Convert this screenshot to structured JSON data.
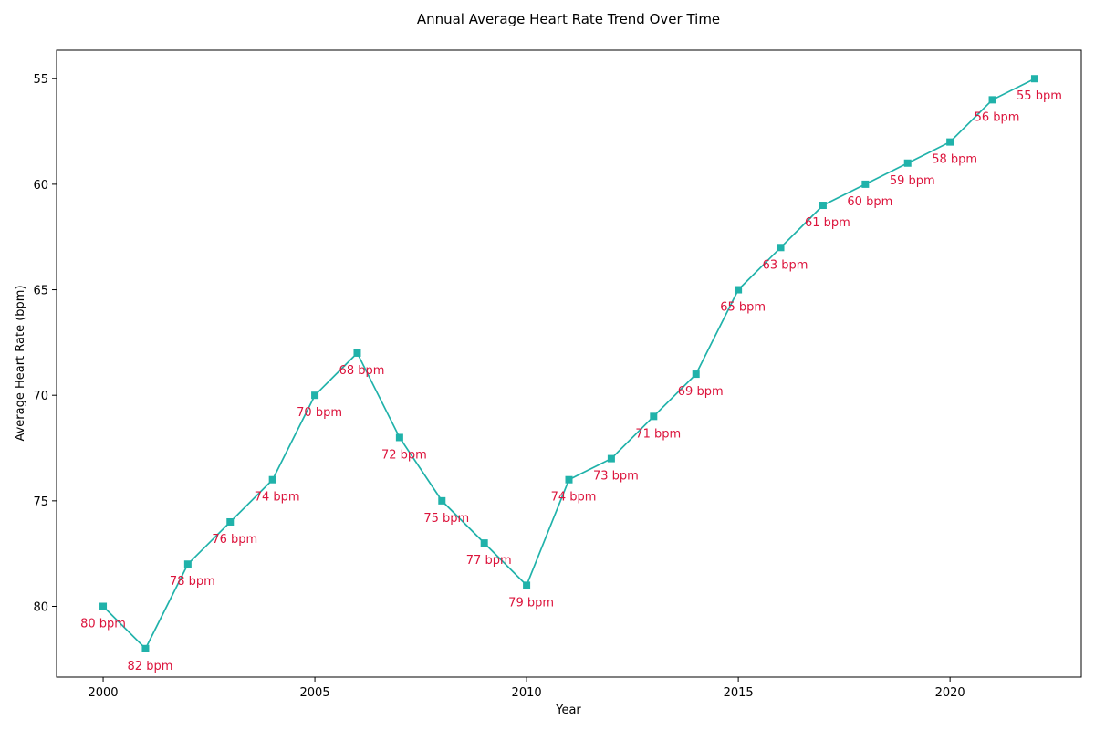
{
  "chart_data": {
    "type": "line",
    "title": "Annual Average Heart Rate Trend Over Time",
    "xlabel": "Year",
    "ylabel": "Average Heart Rate (bpm)",
    "x": [
      2000,
      2001,
      2002,
      2003,
      2004,
      2005,
      2006,
      2007,
      2008,
      2009,
      2010,
      2011,
      2012,
      2013,
      2014,
      2015,
      2016,
      2017,
      2018,
      2019,
      2020,
      2021,
      2022
    ],
    "series": [
      {
        "values": [
          80,
          82,
          78,
          76,
          74,
          70,
          68,
          72,
          75,
          77,
          79,
          74,
          73,
          71,
          69,
          65,
          63,
          61,
          60,
          59,
          58,
          56,
          55
        ],
        "marker": "square",
        "color": "#20b2aa"
      }
    ],
    "data_labels": [
      "80 bpm",
      "82 bpm",
      "78 bpm",
      "76 bpm",
      "74 bpm",
      "70 bpm",
      "68 bpm",
      "72 bpm",
      "75 bpm",
      "77 bpm",
      "79 bpm",
      "74 bpm",
      "73 bpm",
      "71 bpm",
      "69 bpm",
      "65 bpm",
      "63 bpm",
      "61 bpm",
      "60 bpm",
      "59 bpm",
      "58 bpm",
      "56 bpm",
      "55 bpm"
    ],
    "label_color": "#dc143c",
    "xticks": [
      2000,
      2005,
      2010,
      2015,
      2020
    ],
    "yticks": [
      55,
      60,
      65,
      70,
      75,
      80
    ],
    "xlim": [
      1998.9,
      2023.1
    ],
    "ylim": [
      83.35,
      53.65
    ],
    "y_inverted": true,
    "grid": false,
    "legend": "none"
  }
}
